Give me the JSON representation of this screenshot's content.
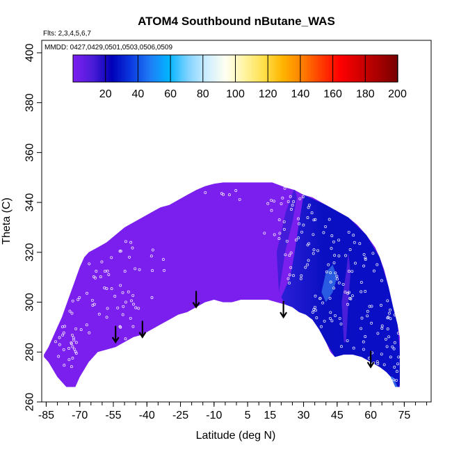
{
  "chart_data": {
    "type": "heatmap",
    "title": "ATOM4 Southbound nButane_WAS",
    "xlabel": "Latitude (deg N)",
    "ylabel": "Theta (C)",
    "flights_note": "Flts: 2,3,4,5,6,7",
    "dates_note": "MMDD: 0427,0429,0501,0503,0506,0509",
    "xlim": [
      -87,
      87
    ],
    "ylim": [
      260,
      405
    ],
    "x_ticks": [
      -85,
      -70,
      -55,
      -40,
      -25,
      -10,
      5,
      15,
      30,
      45,
      60,
      75
    ],
    "x_minor_step": 5,
    "y_ticks": [
      260,
      280,
      300,
      320,
      340,
      360,
      380,
      400
    ],
    "colorbar": {
      "min": 0,
      "max": 200,
      "ticks": [
        20,
        40,
        60,
        80,
        100,
        120,
        140,
        160,
        180,
        200
      ],
      "colors": [
        "#7b1fef",
        "#4b1cd8",
        "#0000b8",
        "#0a3ae0",
        "#1f7bf5",
        "#00b4ff",
        "#7fd2ff",
        "#cfeeff",
        "#fffff0",
        "#fff3a0",
        "#ffe04a",
        "#ffb400",
        "#ff8000",
        "#ff3c00",
        "#ff0000",
        "#d40000",
        "#a80000",
        "#7a0000"
      ]
    },
    "regions": {
      "background_value": 10,
      "high_nh_value": 40,
      "filament_values": [
        45,
        55,
        35
      ]
    },
    "arrows": [
      {
        "lat": -54,
        "theta": 288
      },
      {
        "lat": -42,
        "theta": 290
      },
      {
        "lat": -18,
        "theta": 302
      },
      {
        "lat": 21,
        "theta": 298
      },
      {
        "lat": 60,
        "theta": 278
      }
    ]
  }
}
